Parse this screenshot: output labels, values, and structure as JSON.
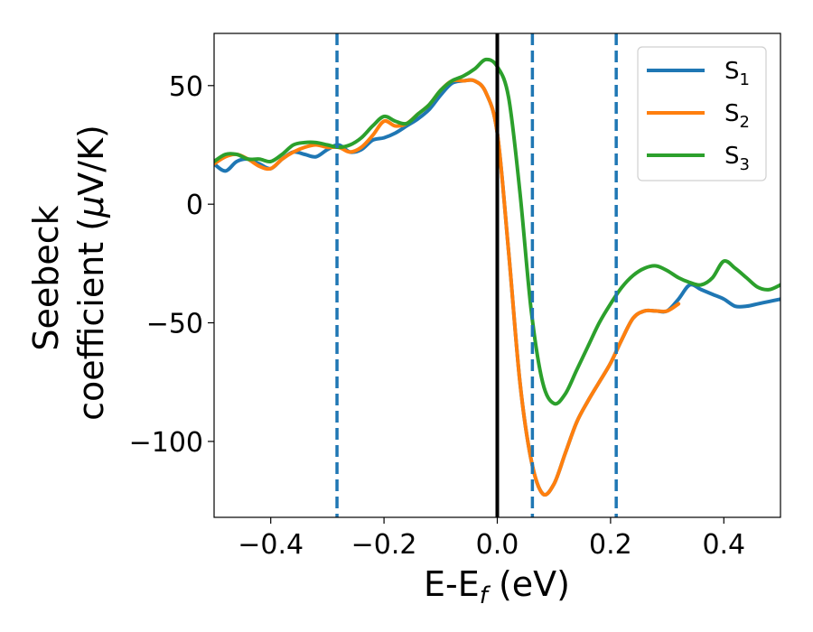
{
  "chart_data": {
    "type": "line",
    "xlabel": {
      "main": "E-E",
      "sub": "f",
      "rest": " (eV)"
    },
    "ylabel": {
      "line1": "Seebeck",
      "line2_pre": "coefficient  (",
      "line2_mu": "μ",
      "line2_post": "V/K)"
    },
    "xlim": [
      -0.5,
      0.5
    ],
    "ylim": [
      -132,
      72
    ],
    "xticks": [
      -0.4,
      -0.2,
      0.0,
      0.2,
      0.4
    ],
    "xtick_labels": [
      "−0.4",
      "−0.2",
      "0.0",
      "0.2",
      "0.4"
    ],
    "yticks": [
      50,
      0,
      -50,
      -100
    ],
    "ytick_labels": [
      "50",
      "0",
      "−50",
      "−100"
    ],
    "legend_position": "top-right",
    "vlines": [
      {
        "x": -0.283,
        "style": "dashed",
        "color": "#1f77b4"
      },
      {
        "x": 0.0,
        "style": "solid",
        "color": "#000000"
      },
      {
        "x": 0.062,
        "style": "dashed",
        "color": "#1f77b4"
      },
      {
        "x": 0.21,
        "style": "dashed",
        "color": "#1f77b4"
      }
    ],
    "series": [
      {
        "name": "S",
        "sub": "1",
        "color": "#1f77b4",
        "x": [
          -0.5,
          -0.48,
          -0.46,
          -0.44,
          -0.42,
          -0.4,
          -0.38,
          -0.36,
          -0.34,
          -0.32,
          -0.3,
          -0.28,
          -0.26,
          -0.24,
          -0.22,
          -0.2,
          -0.18,
          -0.16,
          -0.14,
          -0.12,
          -0.1,
          -0.08,
          -0.06,
          -0.04,
          -0.02,
          0.0,
          0.02,
          0.04,
          0.06,
          0.08,
          0.1,
          0.12,
          0.14,
          0.16,
          0.18,
          0.2,
          0.22,
          0.24,
          0.26,
          0.28,
          0.3,
          0.32,
          0.34,
          0.36,
          0.38,
          0.4,
          0.42,
          0.44,
          0.46,
          0.48,
          0.5
        ],
        "y": [
          17,
          14,
          18,
          19,
          17,
          15,
          19,
          22,
          21,
          20,
          23,
          25,
          22,
          23,
          27,
          28,
          30,
          33,
          36,
          40,
          46,
          51,
          52,
          52,
          47,
          30,
          -20,
          -75,
          -108,
          -122,
          -118,
          -105,
          -92,
          -83,
          -75,
          -67,
          -57,
          -48,
          -45,
          -45,
          -45,
          -40,
          -34,
          -36,
          -38,
          -40,
          -43,
          -43,
          -42,
          -41,
          -40
        ],
        "style": "solid"
      },
      {
        "name": "S",
        "sub": "2",
        "color": "#ff7f0e",
        "x": [
          -0.5,
          -0.48,
          -0.46,
          -0.44,
          -0.42,
          -0.4,
          -0.38,
          -0.36,
          -0.34,
          -0.32,
          -0.3,
          -0.28,
          -0.26,
          -0.24,
          -0.22,
          -0.2,
          -0.18,
          -0.16,
          -0.14,
          -0.12,
          -0.1,
          -0.08,
          -0.06,
          -0.04,
          -0.02,
          0.0,
          0.02,
          0.04,
          0.06,
          0.08,
          0.1,
          0.12,
          0.14,
          0.16,
          0.18,
          0.2,
          0.22,
          0.24,
          0.26,
          0.28,
          0.3,
          0.32
        ],
        "y": [
          17,
          20,
          21,
          19,
          16,
          15,
          19,
          22,
          24,
          25,
          24,
          24,
          22,
          24,
          29,
          35,
          33,
          34,
          38,
          42,
          48,
          52,
          52,
          52,
          47,
          30,
          -20,
          -75,
          -108,
          -122,
          -118,
          -105,
          -92,
          -83,
          -75,
          -67,
          -57,
          -48,
          -45,
          -45,
          -45,
          -42
        ],
        "style": "solid"
      },
      {
        "name": "S",
        "sub": "3",
        "color": "#2ca02c",
        "x": [
          -0.5,
          -0.48,
          -0.46,
          -0.44,
          -0.42,
          -0.4,
          -0.38,
          -0.36,
          -0.34,
          -0.32,
          -0.3,
          -0.28,
          -0.26,
          -0.24,
          -0.22,
          -0.2,
          -0.18,
          -0.16,
          -0.14,
          -0.12,
          -0.1,
          -0.08,
          -0.06,
          -0.04,
          -0.02,
          0.0,
          0.02,
          0.04,
          0.06,
          0.08,
          0.1,
          0.12,
          0.14,
          0.16,
          0.18,
          0.2,
          0.22,
          0.24,
          0.26,
          0.28,
          0.3,
          0.32,
          0.34,
          0.36,
          0.38,
          0.4,
          0.42,
          0.44,
          0.46,
          0.48,
          0.5
        ],
        "y": [
          18,
          21,
          21,
          19,
          19,
          18,
          21,
          25,
          26,
          26,
          25,
          24,
          25,
          28,
          33,
          37,
          35,
          34,
          38,
          42,
          48,
          52,
          54,
          57,
          61,
          58,
          45,
          5,
          -45,
          -75,
          -84,
          -80,
          -70,
          -60,
          -50,
          -42,
          -35,
          -30,
          -27,
          -26,
          -28,
          -31,
          -33,
          -34,
          -31,
          -24,
          -27,
          -31,
          -35,
          -36,
          -34
        ],
        "style": "solid"
      }
    ]
  }
}
